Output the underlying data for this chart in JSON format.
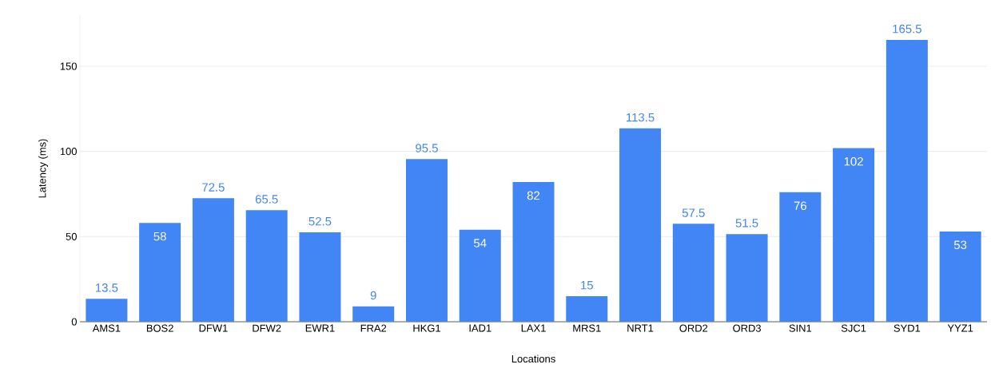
{
  "chart_data": {
    "type": "bar",
    "xlabel": "Locations",
    "ylabel": "Latency (ms)",
    "categories": [
      "AMS1",
      "BOS2",
      "DFW1",
      "DFW2",
      "EWR1",
      "FRA2",
      "HKG1",
      "IAD1",
      "LAX1",
      "MRS1",
      "NRT1",
      "ORD2",
      "ORD3",
      "SIN1",
      "SJC1",
      "SYD1",
      "YYZ1"
    ],
    "values": [
      13.5,
      58,
      72.5,
      65.5,
      52.5,
      9,
      95.5,
      54,
      82,
      15,
      113.5,
      57.5,
      51.5,
      76,
      102,
      165.5,
      53
    ],
    "color": "#4285f4",
    "ylim": [
      0,
      180
    ],
    "yticks": [
      0,
      50,
      100,
      150
    ],
    "grid": "y",
    "data_labels": true
  }
}
